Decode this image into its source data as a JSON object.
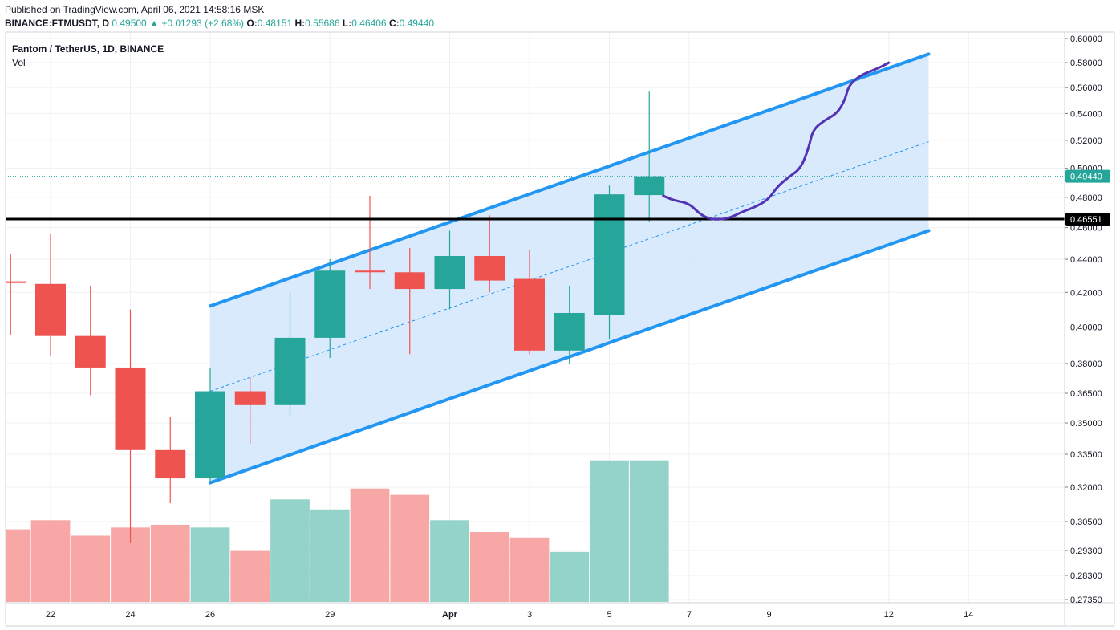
{
  "header": {
    "published": "Published on TradingView.com, April 06, 2021 14:58:16 MSK",
    "symbol": "BINANCE:FTMUSDT, D",
    "last": "0.49500",
    "arrow": "▲",
    "change": "+0.01293 (+2.68%)",
    "o_label": "O:",
    "o_value": "0.48151",
    "h_label": "H:",
    "h_value": "0.55686",
    "l_label": "L:",
    "l_value": "0.46406",
    "c_label": "C:",
    "c_value": "0.49440"
  },
  "legend": {
    "title": "Fantom / TetherUS, 1D, BINANCE",
    "vol": "Vol"
  },
  "colors": {
    "up": "#26a69a",
    "down": "#ef5350",
    "up_volume": "#94d3ca",
    "down_volume": "#f6a7a6",
    "channel_line": "#2196f3",
    "channel_fill": "#d2e6fb",
    "support_line": "#000000",
    "projection": "#5432b4"
  },
  "chart_data": {
    "type": "candlestick",
    "price_axis": {
      "tick_labels": [
        "0.60000",
        "0.58000",
        "0.56000",
        "0.54000",
        "0.52000",
        "0.50000",
        "0.48000",
        "0.46000",
        "0.44000",
        "0.42000",
        "0.40000",
        "0.38000",
        "0.36500",
        "0.35000",
        "0.33500",
        "0.32000",
        "0.30500",
        "0.29300",
        "0.28300",
        "0.27350"
      ],
      "scale": "log"
    },
    "time_axis": {
      "tick_labels": [
        "22",
        "24",
        "26",
        "29",
        "Apr",
        "3",
        "5",
        "7",
        "9",
        "12",
        "14"
      ],
      "tick_days": [
        0,
        2,
        4,
        7,
        10,
        12,
        14,
        16,
        18,
        21,
        23
      ]
    },
    "price_labels": [
      {
        "value": 0.4944,
        "label": "0.49440",
        "color": "#26a69a"
      },
      {
        "value": 0.46551,
        "label": "0.46551",
        "color": "#000000"
      }
    ],
    "candles": [
      {
        "day": -1,
        "o": 0.4265,
        "h": 0.443,
        "l": 0.3955,
        "c": 0.4255,
        "volume": 0.8
      },
      {
        "day": 0,
        "o": 0.425,
        "h": 0.456,
        "l": 0.384,
        "c": 0.395,
        "volume": 0.9
      },
      {
        "day": 1,
        "o": 0.395,
        "h": 0.424,
        "l": 0.364,
        "c": 0.378,
        "volume": 0.73
      },
      {
        "day": 2,
        "o": 0.378,
        "h": 0.41,
        "l": 0.296,
        "c": 0.337,
        "volume": 0.82
      },
      {
        "day": 3,
        "o": 0.337,
        "h": 0.353,
        "l": 0.313,
        "c": 0.324,
        "volume": 0.85
      },
      {
        "day": 4,
        "o": 0.324,
        "h": 0.378,
        "l": 0.322,
        "c": 0.366,
        "volume": 0.82
      },
      {
        "day": 5,
        "o": 0.366,
        "h": 0.373,
        "l": 0.34,
        "c": 0.359,
        "volume": 0.57
      },
      {
        "day": 6,
        "o": 0.359,
        "h": 0.42,
        "l": 0.354,
        "c": 0.394,
        "volume": 1.13
      },
      {
        "day": 7,
        "o": 0.394,
        "h": 0.44,
        "l": 0.383,
        "c": 0.433,
        "volume": 1.02
      },
      {
        "day": 8,
        "o": 0.433,
        "h": 0.481,
        "l": 0.422,
        "c": 0.432,
        "volume": 1.25
      },
      {
        "day": 9,
        "o": 0.432,
        "h": 0.447,
        "l": 0.385,
        "c": 0.422,
        "volume": 1.18
      },
      {
        "day": 10,
        "o": 0.422,
        "h": 0.458,
        "l": 0.41,
        "c": 0.442,
        "volume": 0.9
      },
      {
        "day": 11,
        "o": 0.442,
        "h": 0.468,
        "l": 0.42,
        "c": 0.427,
        "volume": 0.77
      },
      {
        "day": 12,
        "o": 0.428,
        "h": 0.446,
        "l": 0.385,
        "c": 0.387,
        "volume": 0.71
      },
      {
        "day": 13,
        "o": 0.387,
        "h": 0.424,
        "l": 0.38,
        "c": 0.408,
        "volume": 0.55
      },
      {
        "day": 14,
        "o": 0.407,
        "h": 0.488,
        "l": 0.393,
        "c": 0.482,
        "volume": 1.56
      },
      {
        "day": 15,
        "o": 0.4815,
        "h": 0.55686,
        "l": 0.46406,
        "c": 0.4944,
        "volume": 1.56
      }
    ],
    "channel": {
      "upper": [
        {
          "day": 4,
          "price": 0.412
        },
        {
          "day": 22,
          "price": 0.587
        }
      ],
      "lower": [
        {
          "day": 4,
          "price": 0.322
        },
        {
          "day": 22,
          "price": 0.458
        }
      ],
      "median": [
        {
          "day": 4,
          "price": 0.366
        },
        {
          "day": 22,
          "price": 0.519
        }
      ]
    },
    "support_level": 0.46551,
    "last_close": 0.4944,
    "projection": [
      [
        15.35,
        0.481
      ],
      [
        15.6,
        0.478
      ],
      [
        16.0,
        0.476
      ],
      [
        16.3,
        0.468
      ],
      [
        16.6,
        0.465
      ],
      [
        17.0,
        0.466
      ],
      [
        17.3,
        0.47
      ],
      [
        17.7,
        0.474
      ],
      [
        18.0,
        0.479
      ],
      [
        18.2,
        0.487
      ],
      [
        18.5,
        0.494
      ],
      [
        18.8,
        0.5
      ],
      [
        19.0,
        0.515
      ],
      [
        19.1,
        0.528
      ],
      [
        19.4,
        0.535
      ],
      [
        19.7,
        0.54
      ],
      [
        19.9,
        0.55
      ],
      [
        20.0,
        0.562
      ],
      [
        20.3,
        0.57
      ],
      [
        20.7,
        0.575
      ],
      [
        20.95,
        0.579
      ],
      [
        21.0,
        0.58
      ]
    ]
  }
}
